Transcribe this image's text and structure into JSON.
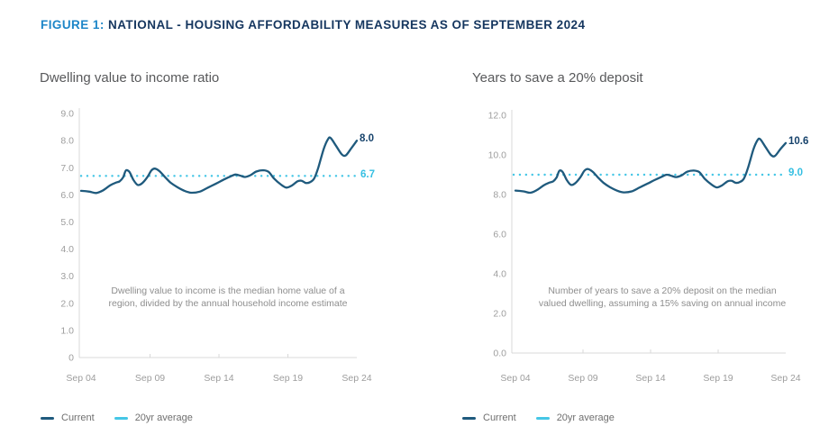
{
  "header": {
    "figure_label": "FIGURE 1:",
    "title": "NATIONAL - HOUSING AFFORDABILITY MEASURES AS OF SEPTEMBER 2024"
  },
  "colors": {
    "figure_label_blue": "#1d86c8",
    "title_navy": "#15365f",
    "current_line": "#1f5a7d",
    "average_line": "#45c6e6",
    "end_label_navy": "#16426b",
    "end_label_cyan": "#35bfe2",
    "axis_gray": "#d8d8d8",
    "tick_text_gray": "#9d9d9d",
    "annotation_gray": "#8e8e8e",
    "chart_title_gray": "#58595b",
    "legend_text_gray": "#6f6f6f"
  },
  "chart_data": [
    {
      "type": "line",
      "title": "Dwelling value to income ratio",
      "annotation": [
        "Dwelling value to income is the median home value of a",
        "region, divided by the annual household income estimate"
      ],
      "ylim": [
        0,
        9
      ],
      "x_unit": "years since Sep 2004",
      "y_ticks": [
        {
          "value": 9,
          "label": "9.0"
        },
        {
          "value": 8,
          "label": "8.0"
        },
        {
          "value": 7,
          "label": "7.0"
        },
        {
          "value": 6,
          "label": "6.0"
        },
        {
          "value": 5,
          "label": "5.0"
        },
        {
          "value": 4,
          "label": "4.0"
        },
        {
          "value": 3,
          "label": "3.0"
        },
        {
          "value": 2,
          "label": "2.0"
        },
        {
          "value": 1,
          "label": "1.0"
        },
        {
          "value": 0,
          "label": "0"
        }
      ],
      "x_ticks": [
        {
          "t": 0,
          "label": "Sep 04"
        },
        {
          "t": 5,
          "label": "Sep 09"
        },
        {
          "t": 10,
          "label": "Sep 14"
        },
        {
          "t": 15,
          "label": "Sep 19"
        },
        {
          "t": 20,
          "label": "Sep 24"
        }
      ],
      "series": [
        {
          "name": "Current",
          "color": "#1f5a7d",
          "end_label": "8.0",
          "t": [
            0,
            0.6,
            1.1,
            1.6,
            2.1,
            2.5,
            2.8,
            3.05,
            3.25,
            3.5,
            3.8,
            4.1,
            4.4,
            4.8,
            5.1,
            5.35,
            5.7,
            6.1,
            6.5,
            7.0,
            7.5,
            8.0,
            8.6,
            9.2,
            9.8,
            10.3,
            10.8,
            11.2,
            11.6,
            11.9,
            12.3,
            12.7,
            13.2,
            13.6,
            14.0,
            14.5,
            14.9,
            15.3,
            15.7,
            16.0,
            16.3,
            16.6,
            16.9,
            17.2,
            17.6,
            17.9,
            18.1,
            18.5,
            18.9,
            19.2,
            19.6,
            20.0
          ],
          "values": [
            6.15,
            6.12,
            6.07,
            6.17,
            6.35,
            6.45,
            6.5,
            6.65,
            6.9,
            6.85,
            6.55,
            6.37,
            6.42,
            6.65,
            6.9,
            6.97,
            6.87,
            6.65,
            6.45,
            6.28,
            6.15,
            6.08,
            6.12,
            6.27,
            6.42,
            6.55,
            6.67,
            6.75,
            6.7,
            6.66,
            6.73,
            6.86,
            6.91,
            6.85,
            6.6,
            6.38,
            6.27,
            6.35,
            6.5,
            6.52,
            6.44,
            6.47,
            6.6,
            7.0,
            7.7,
            8.05,
            8.1,
            7.8,
            7.5,
            7.46,
            7.72,
            8.0
          ]
        },
        {
          "name": "20yr average",
          "color": "#45c6e6",
          "style": "dotted",
          "value": 6.7,
          "end_label": "6.7"
        }
      ]
    },
    {
      "type": "line",
      "title": "Years to save a 20% deposit",
      "annotation": [
        "Number of years to save a 20% deposit on the median",
        "valued dwelling, assuming a 15% saving on annual income"
      ],
      "ylim": [
        0,
        12
      ],
      "x_unit": "years since Sep 2004",
      "y_ticks": [
        {
          "value": 12,
          "label": "12.0"
        },
        {
          "value": 10,
          "label": "10.0"
        },
        {
          "value": 8,
          "label": "8.0"
        },
        {
          "value": 6,
          "label": "6.0"
        },
        {
          "value": 4,
          "label": "4.0"
        },
        {
          "value": 2,
          "label": "2.0"
        },
        {
          "value": 0,
          "label": "0.0"
        }
      ],
      "x_ticks": [
        {
          "t": 0,
          "label": "Sep 04"
        },
        {
          "t": 5,
          "label": "Sep 09"
        },
        {
          "t": 10,
          "label": "Sep 14"
        },
        {
          "t": 15,
          "label": "Sep 19"
        },
        {
          "t": 20,
          "label": "Sep 24"
        }
      ],
      "series": [
        {
          "name": "Current",
          "color": "#1f5a7d",
          "end_label": "10.6",
          "t": [
            0,
            0.6,
            1.1,
            1.6,
            2.1,
            2.5,
            2.8,
            3.05,
            3.25,
            3.5,
            3.8,
            4.1,
            4.4,
            4.8,
            5.1,
            5.35,
            5.7,
            6.1,
            6.5,
            7.0,
            7.5,
            8.0,
            8.6,
            9.2,
            9.8,
            10.3,
            10.8,
            11.2,
            11.6,
            11.9,
            12.3,
            12.7,
            13.2,
            13.6,
            14.0,
            14.5,
            14.9,
            15.3,
            15.7,
            16.0,
            16.3,
            16.6,
            16.9,
            17.2,
            17.6,
            17.9,
            18.1,
            18.5,
            18.9,
            19.2,
            19.6,
            20.0
          ],
          "values": [
            8.2,
            8.16,
            8.09,
            8.23,
            8.47,
            8.6,
            8.67,
            8.87,
            9.2,
            9.13,
            8.73,
            8.49,
            8.56,
            8.87,
            9.2,
            9.29,
            9.16,
            8.87,
            8.6,
            8.37,
            8.2,
            8.11,
            8.16,
            8.36,
            8.56,
            8.73,
            8.89,
            9.0,
            8.93,
            8.88,
            8.97,
            9.15,
            9.21,
            9.13,
            8.8,
            8.51,
            8.36,
            8.47,
            8.67,
            8.69,
            8.59,
            8.63,
            8.8,
            9.33,
            10.27,
            10.73,
            10.8,
            10.4,
            10.0,
            9.95,
            10.29,
            10.6
          ]
        },
        {
          "name": "20yr average",
          "color": "#45c6e6",
          "style": "dotted",
          "value": 9.0,
          "end_label": "9.0"
        }
      ]
    }
  ]
}
